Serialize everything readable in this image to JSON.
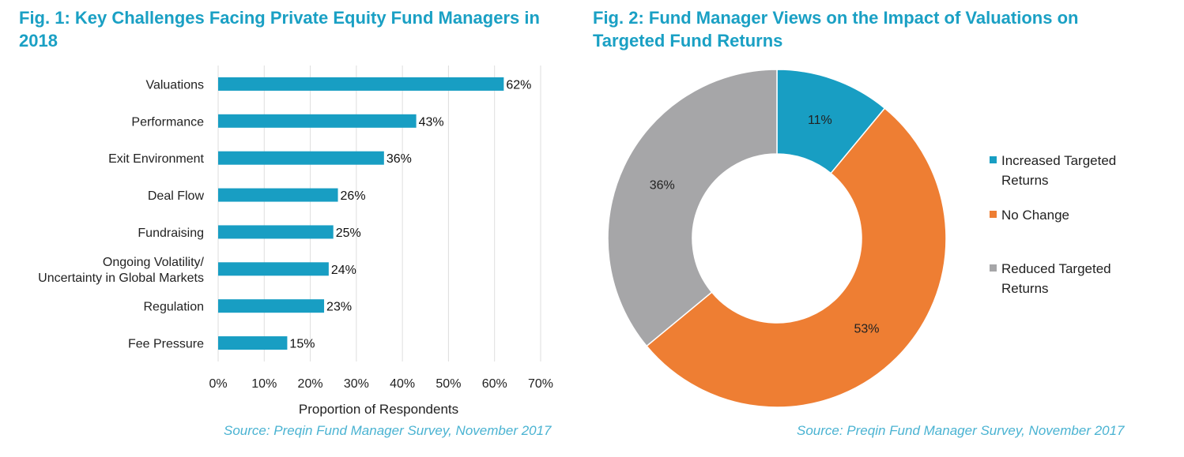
{
  "chart_data": [
    {
      "type": "bar",
      "orientation": "horizontal",
      "title": "Fig. 1: Key Challenges Facing Private Equity Fund Managers in 2018",
      "categories": [
        [
          "Valuations"
        ],
        [
          "Performance"
        ],
        [
          "Exit Environment"
        ],
        [
          "Deal Flow"
        ],
        [
          "Fundraising"
        ],
        [
          "Ongoing Volatility/",
          "Uncertainty in Global Markets"
        ],
        [
          "Regulation"
        ],
        [
          "Fee Pressure"
        ]
      ],
      "values": [
        62,
        43,
        36,
        26,
        25,
        24,
        23,
        15
      ],
      "value_labels": [
        "62%",
        "43%",
        "36%",
        "26%",
        "25%",
        "24%",
        "23%",
        "15%"
      ],
      "xlabel": "Proportion of Respondents",
      "xlim": [
        0,
        70
      ],
      "ticks": [
        "0%",
        "10%",
        "20%",
        "30%",
        "40%",
        "50%",
        "60%",
        "70%"
      ],
      "grid": true,
      "color": "#189ec3",
      "source": "Source: Preqin Fund Manager Survey, November 2017"
    },
    {
      "type": "pie",
      "donut": true,
      "title": "Fig. 2: Fund Manager Views on the Impact of Valuations on Targeted Fund Returns",
      "slices": [
        {
          "name": [
            "Increased Targeted",
            "Returns"
          ],
          "value": 11,
          "label": "11%",
          "color": "#189ec3"
        },
        {
          "name": [
            "No Change"
          ],
          "value": 53,
          "label": "53%",
          "color": "#ee7e33"
        },
        {
          "name": [
            "Reduced Targeted",
            "Returns"
          ],
          "value": 36,
          "label": "36%",
          "color": "#a6a6a8"
        }
      ],
      "legend": "right",
      "source": "Source: Preqin Fund Manager Survey, November 2017"
    }
  ]
}
